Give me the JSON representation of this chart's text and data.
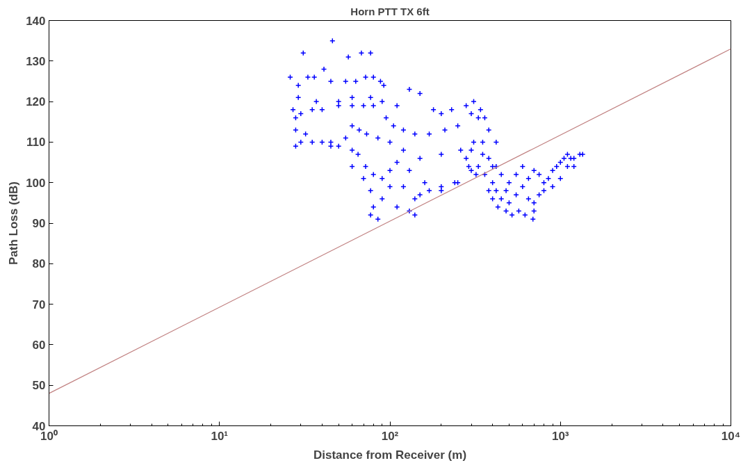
{
  "chart_data": {
    "type": "scatter",
    "title": "Horn PTT TX 6ft",
    "xlabel": "Distance from Receiver (m)",
    "ylabel": "Path Loss (dB)",
    "log": "x",
    "grid": false,
    "xlim": [
      1,
      10000
    ],
    "ylim": [
      40,
      140
    ],
    "xticks": [
      {
        "value": 1,
        "label": "10⁰"
      },
      {
        "value": 10,
        "label": "10¹"
      },
      {
        "value": 100,
        "label": "10²"
      },
      {
        "value": 1000,
        "label": "10³"
      },
      {
        "value": 10000,
        "label": "10⁴"
      }
    ],
    "yticks": [
      40,
      50,
      60,
      70,
      80,
      90,
      100,
      110,
      120,
      130,
      140
    ],
    "series": [
      {
        "marker": "cross",
        "color": "#0000ff",
        "x": [
          46,
          31,
          57,
          68,
          77,
          41,
          26,
          29,
          33,
          36,
          45,
          55,
          63,
          72,
          80,
          88,
          92,
          29,
          37,
          50,
          60,
          77,
          90,
          110,
          130,
          150,
          180,
          200,
          230,
          280,
          310,
          340,
          360,
          27,
          28,
          30,
          35,
          40,
          50,
          60,
          70,
          80,
          95,
          105,
          120,
          140,
          170,
          210,
          250,
          300,
          330,
          380,
          420,
          28,
          32,
          45,
          55,
          60,
          66,
          73,
          85,
          100,
          120,
          150,
          200,
          260,
          310,
          350,
          28,
          30,
          35,
          40,
          45,
          50,
          60,
          65,
          72,
          80,
          90,
          100,
          110,
          130,
          160,
          200,
          240,
          290,
          320,
          60,
          70,
          77,
          90,
          100,
          120,
          140,
          130,
          140,
          150,
          170,
          200,
          250,
          300,
          330,
          360,
          380,
          400,
          430,
          480,
          520,
          570,
          620,
          690,
          700,
          80,
          77,
          85,
          110,
          400,
          420,
          450,
          500,
          550,
          600,
          650,
          700,
          750,
          800,
          850,
          900,
          950,
          1000,
          1050,
          1100,
          1150,
          1200,
          1300,
          1350,
          500,
          550,
          600,
          450,
          420,
          480,
          650,
          700,
          750,
          800,
          900,
          1000,
          1100,
          1200,
          350,
          380,
          400,
          300,
          280
        ],
        "values": [
          135,
          132,
          131,
          132,
          132,
          128,
          126,
          124,
          126,
          126,
          125,
          125,
          125,
          126,
          126,
          125,
          124,
          121,
          120,
          120,
          121,
          121,
          120,
          119,
          123,
          122,
          118,
          117,
          118,
          119,
          120,
          118,
          116,
          118,
          116,
          117,
          118,
          118,
          119,
          119,
          119,
          119,
          116,
          114,
          113,
          112,
          112,
          113,
          114,
          117,
          116,
          113,
          110,
          113,
          112,
          110,
          111,
          114,
          113,
          112,
          111,
          110,
          108,
          106,
          107,
          108,
          110,
          107,
          109,
          110,
          110,
          110,
          109,
          109,
          108,
          107,
          104,
          102,
          101,
          103,
          105,
          103,
          100,
          99,
          100,
          104,
          102,
          104,
          101,
          98,
          96,
          99,
          99,
          96,
          93,
          92,
          97,
          98,
          98,
          100,
          103,
          104,
          102,
          98,
          96,
          94,
          93,
          92,
          93,
          92,
          91,
          93,
          94,
          92,
          91,
          94,
          100,
          98,
          96,
          95,
          97,
          99,
          101,
          103,
          102,
          100,
          101,
          103,
          104,
          105,
          106,
          107,
          106,
          106,
          107,
          107,
          100,
          102,
          104,
          102,
          104,
          98,
          96,
          95,
          97,
          98,
          99,
          101,
          104,
          104,
          110,
          106,
          104,
          108,
          106
        ]
      },
      {
        "type": "line",
        "color": "#c08080",
        "x": [
          1,
          10000
        ],
        "values": [
          48,
          133
        ]
      }
    ]
  }
}
